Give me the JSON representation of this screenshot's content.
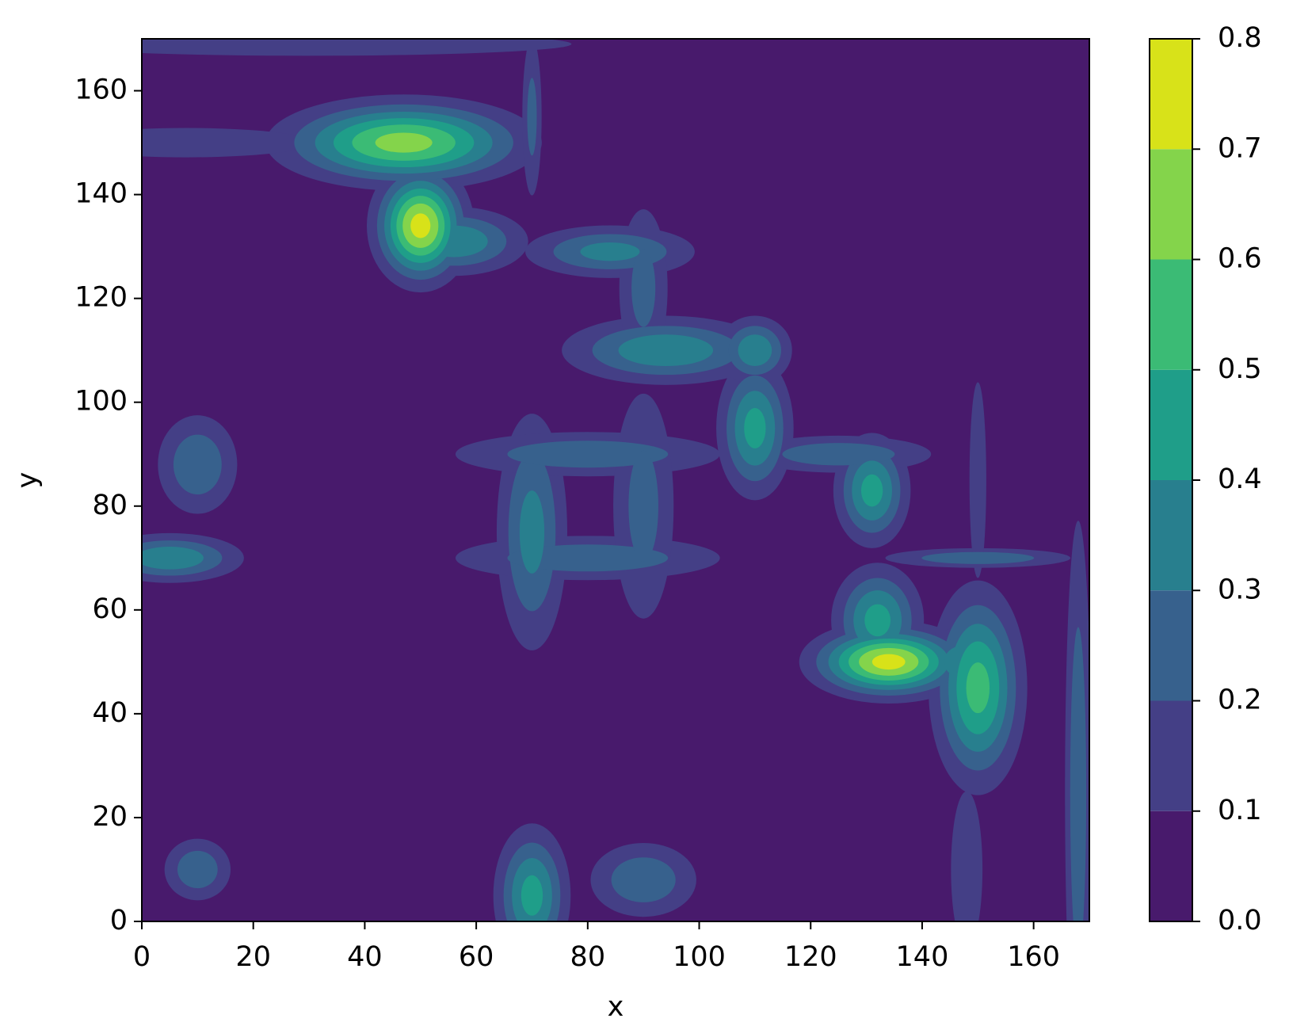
{
  "chart_data": {
    "type": "contourf",
    "x_label": "x",
    "y_label": "y",
    "xlim": [
      0,
      170
    ],
    "ylim": [
      0,
      170
    ],
    "xticks": [
      0,
      20,
      40,
      60,
      80,
      100,
      120,
      140,
      160
    ],
    "yticks": [
      0,
      20,
      40,
      60,
      80,
      100,
      120,
      140,
      160
    ],
    "levels": [
      {
        "value": 0,
        "label": "0.0"
      },
      0.1,
      0.2,
      0.3,
      0.4,
      0.5,
      0.6,
      0.7,
      0.8
    ],
    "colors": [
      "#481a6c",
      "#443f86",
      "#37618d",
      "#287f8e",
      "#1f9e89",
      "#3bbb75",
      "#84d44b",
      "#d8e219"
    ],
    "peaks": [
      {
        "x": 50,
        "y": 134,
        "value": 0.75,
        "sx": 3,
        "sy": 4
      },
      {
        "x": 134,
        "y": 50,
        "value": 0.75,
        "sx": 5,
        "sy": 2.5
      },
      {
        "x": 47,
        "y": 150,
        "value": 0.65,
        "sx": 8,
        "sy": 3
      },
      {
        "x": 150,
        "y": 45,
        "value": 0.55,
        "sx": 3,
        "sy": 7
      },
      {
        "x": 110,
        "y": 95,
        "value": 0.45,
        "sx": 2.5,
        "sy": 5
      },
      {
        "x": 94,
        "y": 110,
        "value": 0.4,
        "sx": 7,
        "sy": 2.5
      },
      {
        "x": 70,
        "y": 75,
        "value": 0.35,
        "sx": 2.5,
        "sy": 9
      },
      {
        "x": 80,
        "y": 70,
        "value": 0.3,
        "sx": 10,
        "sy": 1.8
      },
      {
        "x": 80,
        "y": 90,
        "value": 0.3,
        "sx": 10,
        "sy": 1.8
      },
      {
        "x": 90,
        "y": 80,
        "value": 0.25,
        "sx": 2.5,
        "sy": 10
      },
      {
        "x": 5,
        "y": 70,
        "value": 0.4,
        "sx": 5,
        "sy": 1.8
      },
      {
        "x": 10,
        "y": 88,
        "value": 0.3,
        "sx": 3,
        "sy": 4
      },
      {
        "x": 70,
        "y": 5,
        "value": 0.45,
        "sx": 2.5,
        "sy": 5
      },
      {
        "x": 90,
        "y": 8,
        "value": 0.3,
        "sx": 4,
        "sy": 3
      },
      {
        "x": 131,
        "y": 83,
        "value": 0.45,
        "sx": 2.5,
        "sy": 4
      },
      {
        "x": 132,
        "y": 58,
        "value": 0.45,
        "sx": 3,
        "sy": 4
      },
      {
        "x": 56,
        "y": 131,
        "value": 0.4,
        "sx": 5,
        "sy": 2.5
      },
      {
        "x": 84,
        "y": 129,
        "value": 0.35,
        "sx": 6,
        "sy": 2
      },
      {
        "x": 110,
        "y": 110,
        "value": 0.4,
        "sx": 2.5,
        "sy": 2.5
      },
      {
        "x": 147,
        "y": 50,
        "value": 0.4,
        "sx": 2.5,
        "sy": 2.5
      },
      {
        "x": 150,
        "y": 70,
        "value": 0.3,
        "sx": 7,
        "sy": 0.8
      },
      {
        "x": 150,
        "y": 85,
        "value": 0.2,
        "sx": 0.8,
        "sy": 10
      },
      {
        "x": 125,
        "y": 90,
        "value": 0.3,
        "sx": 7,
        "sy": 1.5
      },
      {
        "x": 90,
        "y": 122,
        "value": 0.25,
        "sx": 2,
        "sy": 7
      },
      {
        "x": 70,
        "y": 155,
        "value": 0.25,
        "sx": 0.8,
        "sy": 7
      },
      {
        "x": 8,
        "y": 150,
        "value": 0.2,
        "sx": 12,
        "sy": 1.5
      },
      {
        "x": 168,
        "y": 25,
        "value": 0.3,
        "sx": 1,
        "sy": 22
      },
      {
        "x": 10,
        "y": 10,
        "value": 0.3,
        "sx": 2.5,
        "sy": 2.5
      },
      {
        "x": 148,
        "y": 10,
        "value": 0.2,
        "sx": 1.5,
        "sy": 8
      },
      {
        "x": 30,
        "y": 169,
        "value": 0.2,
        "sx": 25,
        "sy": 1.2
      }
    ]
  }
}
